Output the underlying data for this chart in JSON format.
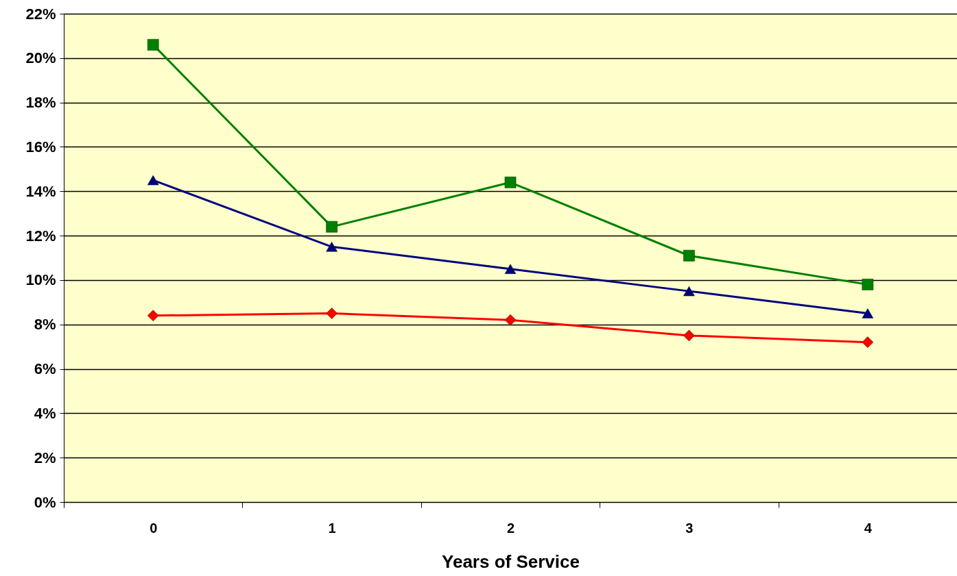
{
  "chart_data": {
    "type": "line",
    "xlabel": "Years of Service",
    "categories": [
      "0",
      "1",
      "2",
      "3",
      "4"
    ],
    "ylim": [
      0,
      22
    ],
    "yticks": [
      {
        "value": 0,
        "label": "0%"
      },
      {
        "value": 2,
        "label": "2%"
      },
      {
        "value": 4,
        "label": "4%"
      },
      {
        "value": 6,
        "label": "6%"
      },
      {
        "value": 8,
        "label": "8%"
      },
      {
        "value": 10,
        "label": "10%"
      },
      {
        "value": 12,
        "label": "12%"
      },
      {
        "value": 14,
        "label": "14%"
      },
      {
        "value": 16,
        "label": "16%"
      },
      {
        "value": 18,
        "label": "18%"
      },
      {
        "value": 20,
        "label": "20%"
      },
      {
        "value": 22,
        "label": "22%"
      }
    ],
    "grid": "y",
    "line_style": "solid",
    "series": [
      {
        "color": "#008000",
        "marker": "square",
        "values": [
          20.6,
          12.4,
          14.4,
          11.1,
          9.8
        ]
      },
      {
        "color": "#000080",
        "marker": "triangle",
        "values": [
          14.5,
          11.5,
          10.5,
          9.5,
          8.5
        ]
      },
      {
        "color": "#ff0000",
        "marker": "diamond",
        "values": [
          8.4,
          8.5,
          8.2,
          7.5,
          7.2
        ]
      }
    ]
  }
}
